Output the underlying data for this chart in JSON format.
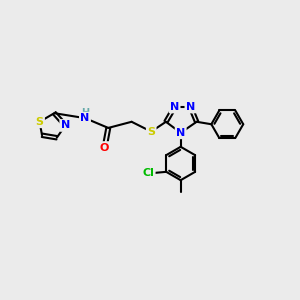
{
  "bg_color": "#EBEBEB",
  "bond_color": "#000000",
  "bond_width": 1.5,
  "atom_colors": {
    "S": "#CCCC00",
    "N": "#0000FF",
    "O": "#FF0000",
    "C": "#000000",
    "Cl": "#00BB00",
    "H": "#66AAAA"
  },
  "scale": 1.0
}
